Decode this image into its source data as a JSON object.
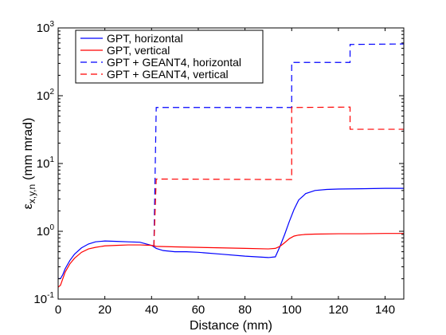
{
  "chart_data": {
    "type": "line",
    "xlabel": "Distance (mm)",
    "ylabel": {
      "base": "ε",
      "subscript": "x,y,n",
      "unit": "(mm mrad)"
    },
    "xlim": [
      0,
      148
    ],
    "ylim": [
      0.1,
      1000
    ],
    "yscale": "log",
    "grid": false,
    "legend_position": "top-left",
    "x_ticks": [
      0,
      20,
      40,
      60,
      80,
      100,
      120,
      140
    ],
    "x_tick_labels": [
      "0",
      "20",
      "40",
      "60",
      "80",
      "100",
      "120",
      "140"
    ],
    "y_ticks": [
      {
        "value": 0.1,
        "base": "10",
        "exp": "-1"
      },
      {
        "value": 1,
        "base": "10",
        "exp": "0"
      },
      {
        "value": 10,
        "base": "10",
        "exp": "1"
      },
      {
        "value": 100,
        "base": "10",
        "exp": "2"
      },
      {
        "value": 1000,
        "base": "10",
        "exp": "3"
      }
    ],
    "series": [
      {
        "name": "GPT, horizontal",
        "color": "#0000ff",
        "dash": "solid",
        "x": [
          0,
          1,
          2,
          3,
          5,
          7,
          10,
          13,
          16,
          20,
          25,
          30,
          35,
          40,
          42,
          45,
          50,
          55,
          60,
          70,
          80,
          90,
          93,
          95,
          97,
          99,
          101,
          103,
          106,
          110,
          115,
          120,
          130,
          140,
          148
        ],
        "y": [
          0.2,
          0.2,
          0.23,
          0.28,
          0.37,
          0.46,
          0.57,
          0.65,
          0.7,
          0.72,
          0.71,
          0.7,
          0.69,
          0.62,
          0.56,
          0.52,
          0.5,
          0.5,
          0.49,
          0.46,
          0.43,
          0.41,
          0.42,
          0.6,
          0.9,
          1.4,
          2.1,
          2.9,
          3.6,
          4.0,
          4.15,
          4.2,
          4.25,
          4.3,
          4.3
        ]
      },
      {
        "name": "GPT, vertical",
        "color": "#ff0000",
        "dash": "solid",
        "x": [
          0,
          1,
          2,
          3,
          5,
          7,
          10,
          13,
          16,
          20,
          25,
          30,
          35,
          40,
          42,
          50,
          60,
          70,
          80,
          90,
          93,
          95,
          97,
          99,
          101,
          103,
          106,
          110,
          120,
          130,
          140,
          148
        ],
        "y": [
          0.15,
          0.16,
          0.2,
          0.25,
          0.33,
          0.4,
          0.49,
          0.55,
          0.58,
          0.61,
          0.62,
          0.63,
          0.63,
          0.62,
          0.6,
          0.59,
          0.58,
          0.57,
          0.56,
          0.55,
          0.56,
          0.6,
          0.68,
          0.78,
          0.85,
          0.88,
          0.9,
          0.91,
          0.92,
          0.92,
          0.93,
          0.93
        ]
      },
      {
        "name": "GPT + GEANT4, horizontal",
        "color": "#0000ff",
        "dash": "dashed",
        "x": [
          41,
          42,
          100,
          100,
          125,
          125,
          148
        ],
        "y": [
          0.6,
          67,
          67,
          310,
          310,
          570,
          580
        ]
      },
      {
        "name": "GPT + GEANT4, vertical",
        "color": "#ff0000",
        "dash": "dashed",
        "x": [
          41,
          42,
          100,
          100,
          125,
          125,
          148
        ],
        "y": [
          0.6,
          5.9,
          5.8,
          67,
          68,
          32,
          32
        ]
      }
    ]
  }
}
